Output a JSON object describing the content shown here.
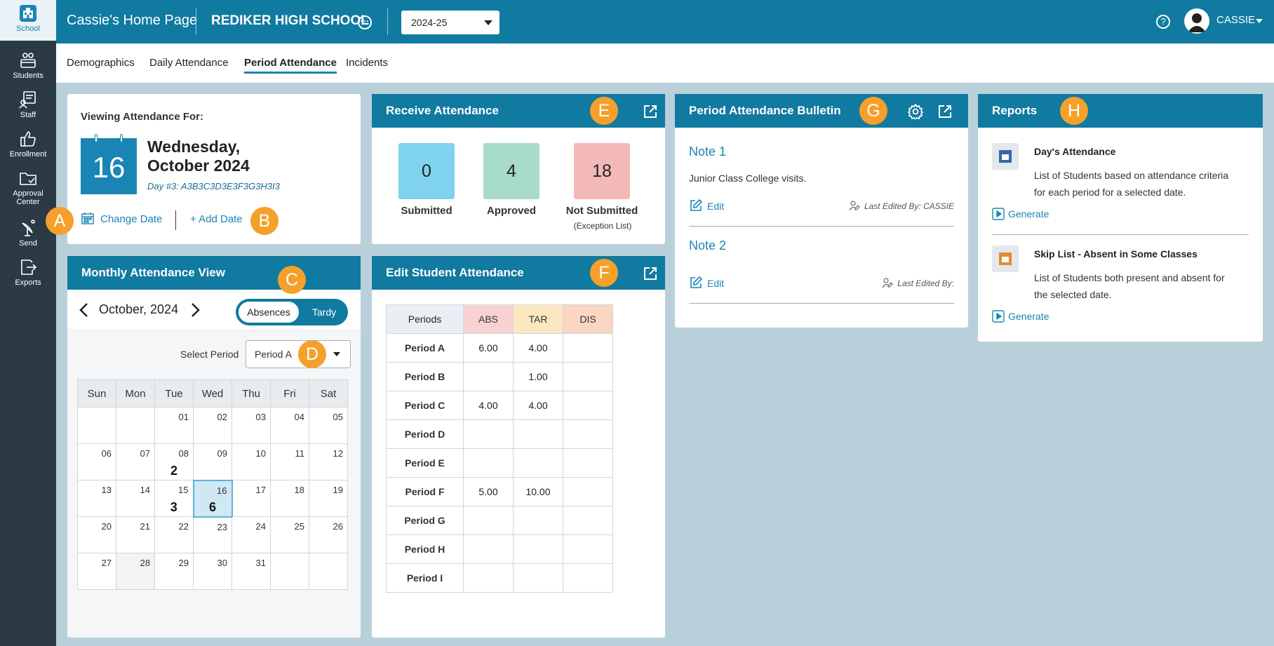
{
  "sidebar": {
    "items": [
      {
        "label": "School"
      },
      {
        "label": "Students"
      },
      {
        "label": "Staff"
      },
      {
        "label": "Enrollment"
      },
      {
        "label": "Approval Center"
      },
      {
        "label": "Send"
      },
      {
        "label": "Exports"
      }
    ]
  },
  "topbar": {
    "page_title": "Cassie's Home Page",
    "school": "REDIKER HIGH SCHOOL",
    "more_glyph": "···",
    "year": "2024-25",
    "help_glyph": "?",
    "user": "CASSIE"
  },
  "subnav": {
    "tabs": [
      "Demographics",
      "Daily Attendance",
      "Period Attendance",
      "Incidents"
    ]
  },
  "viewing": {
    "label": "Viewing Attendance For:",
    "day_num": "16",
    "weekday": "Wednesday,",
    "month_year": "October 2024",
    "day_code": "Day #3: A3B3C3D3E3F3G3H3I3",
    "change_date": "Change Date",
    "add_date": "+ Add Date"
  },
  "badges": {
    "a": "A",
    "b": "B",
    "c": "C",
    "d": "D",
    "e": "E",
    "f": "F",
    "g": "G",
    "h": "H"
  },
  "receive": {
    "title": "Receive Attendance",
    "stats": [
      {
        "value": "0",
        "label": "Submitted",
        "color": "#7fd3ee"
      },
      {
        "value": "4",
        "label": "Approved",
        "color": "#a9dbc9"
      },
      {
        "value": "18",
        "label": "Not Submitted",
        "color": "#f3b8b8"
      }
    ],
    "exception": "(Exception List)"
  },
  "monthly": {
    "title": "Monthly Attendance View",
    "month": "October, 2024",
    "toggle_on": "Absences",
    "toggle_off": "Tardy",
    "select_label": "Select Period",
    "period": "Period A",
    "days": [
      "Sun",
      "Mon",
      "Tue",
      "Wed",
      "Thu",
      "Fri",
      "Sat"
    ],
    "weeks": [
      [
        {
          "d": ""
        },
        {
          "d": ""
        },
        {
          "d": "01"
        },
        {
          "d": "02"
        },
        {
          "d": "03"
        },
        {
          "d": "04"
        },
        {
          "d": "05"
        }
      ],
      [
        {
          "d": "06"
        },
        {
          "d": "07"
        },
        {
          "d": "08",
          "c": "2"
        },
        {
          "d": "09"
        },
        {
          "d": "10"
        },
        {
          "d": "11"
        },
        {
          "d": "12"
        }
      ],
      [
        {
          "d": "13"
        },
        {
          "d": "14"
        },
        {
          "d": "15",
          "c": "3"
        },
        {
          "d": "16",
          "c": "6",
          "sel": true
        },
        {
          "d": "17"
        },
        {
          "d": "18"
        },
        {
          "d": "19"
        }
      ],
      [
        {
          "d": "20"
        },
        {
          "d": "21"
        },
        {
          "d": "22"
        },
        {
          "d": "23"
        },
        {
          "d": "24"
        },
        {
          "d": "25"
        },
        {
          "d": "26"
        }
      ],
      [
        {
          "d": "27"
        },
        {
          "d": "28",
          "grey": true
        },
        {
          "d": "29"
        },
        {
          "d": "30"
        },
        {
          "d": "31"
        },
        {
          "d": ""
        },
        {
          "d": ""
        }
      ]
    ]
  },
  "edit": {
    "title": "Edit Student Attendance",
    "headers": [
      "Periods",
      "ABS",
      "TAR",
      "DIS"
    ],
    "header_colors": [
      "#e9eff4",
      "#f8d2d2",
      "#fbe7bf",
      "#fbd6c2"
    ],
    "rows": [
      [
        "Period A",
        "6.00",
        "4.00",
        ""
      ],
      [
        "Period B",
        "",
        "1.00",
        ""
      ],
      [
        "Period C",
        "4.00",
        "4.00",
        ""
      ],
      [
        "Period D",
        "",
        "",
        ""
      ],
      [
        "Period E",
        "",
        "",
        ""
      ],
      [
        "Period F",
        "5.00",
        "10.00",
        ""
      ],
      [
        "Period G",
        "",
        "",
        ""
      ],
      [
        "Period H",
        "",
        "",
        ""
      ],
      [
        "Period I",
        "",
        "",
        ""
      ]
    ]
  },
  "bulletin": {
    "title": "Period Attendance Bulletin",
    "notes": [
      {
        "title": "Note 1",
        "body": "Junior Class College visits.",
        "edit": "Edit",
        "last": "Last Edited By: CASSIE"
      },
      {
        "title": "Note 2",
        "body": "",
        "edit": "Edit",
        "last": "Last Edited By:"
      }
    ]
  },
  "reports": {
    "title": "Reports",
    "items": [
      {
        "title": "Day's Attendance",
        "desc_1": "List of Students based on attendance criteria",
        "desc_2": "for each period for a selected date.",
        "action": "Generate",
        "icon_color": "#3d63a8"
      },
      {
        "title": "Skip List - Absent in Some Classes",
        "desc_1": "List of Students both present and absent for",
        "desc_2": "the selected date.",
        "action": "Generate",
        "icon_color": "#e58a32"
      }
    ]
  }
}
